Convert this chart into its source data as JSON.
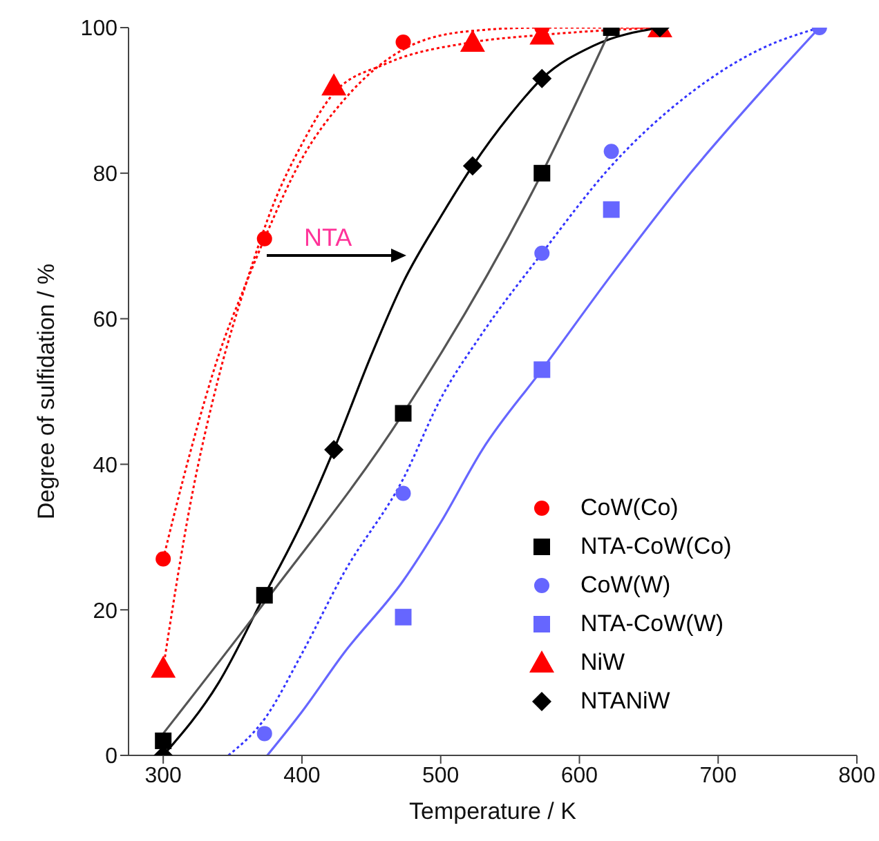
{
  "chart_data": {
    "type": "scatter",
    "xlabel": "Temperature / K",
    "ylabel": "Degree of sulfidation / %",
    "xlim": [
      275,
      800
    ],
    "xticks": [
      300,
      400,
      500,
      600,
      700,
      800
    ],
    "ylim": [
      0,
      100
    ],
    "yticks": [
      0,
      20,
      40,
      60,
      80,
      100
    ],
    "legend": "bottom right",
    "grid": false,
    "annotations": [
      "NTA"
    ],
    "series": [
      {
        "name": "CoW(Co)",
        "marker": "circle",
        "color": "#ff0000",
        "x": [
          300,
          373,
          473,
          573
        ],
        "values": [
          27,
          71,
          98,
          100
        ]
      },
      {
        "name": "NTA-CoW(Co)",
        "marker": "square",
        "color": "#000000",
        "x": [
          300,
          373,
          473,
          573,
          623
        ],
        "values": [
          2,
          22,
          47,
          80,
          100
        ]
      },
      {
        "name": "CoW(W)",
        "marker": "circle",
        "color": "#6666ff",
        "x": [
          373,
          473,
          573,
          623,
          773
        ],
        "values": [
          3,
          36,
          69,
          83,
          100
        ]
      },
      {
        "name": "NTA-CoW(W)",
        "marker": "square",
        "color": "#6666ff",
        "x": [
          473,
          573,
          623
        ],
        "values": [
          19,
          53,
          75
        ]
      },
      {
        "name": "NiW",
        "marker": "triangle",
        "color": "#ff0000",
        "x": [
          300,
          423,
          523,
          573,
          658
        ],
        "values": [
          12,
          92,
          98,
          99,
          100
        ]
      },
      {
        "name": "NTANiW",
        "marker": "diamond",
        "color": "#000000",
        "x": [
          300,
          423,
          523,
          573,
          658
        ],
        "values": [
          0,
          42,
          81,
          93,
          100
        ]
      },
      {
        "type": "line",
        "marker": "none",
        "line_style": "dotted",
        "color": "#ff0000",
        "x": [
          300,
          320,
          340,
          360,
          373,
          400,
          430,
          473,
          520,
          573,
          658
        ],
        "values": [
          27,
          42,
          55,
          65,
          71,
          82,
          90,
          97,
          99.5,
          100,
          100
        ]
      },
      {
        "type": "line",
        "marker": "none",
        "line_style": "dotted",
        "color": "#ff0000",
        "x": [
          300,
          320,
          340,
          360,
          380,
          400,
          423,
          460,
          523,
          573,
          658
        ],
        "values": [
          12,
          35,
          52,
          65,
          76,
          84,
          91,
          95,
          98,
          99,
          100
        ]
      },
      {
        "type": "line",
        "marker": "none",
        "line_style": "solid",
        "color": "#000000",
        "x": [
          300,
          340,
          373,
          400,
          423,
          450,
          473,
          500,
          523,
          550,
          573,
          610,
          658
        ],
        "values": [
          0,
          10,
          22,
          32,
          42,
          55,
          65,
          74,
          81,
          88,
          93,
          97.5,
          100
        ]
      },
      {
        "type": "line",
        "marker": "none",
        "line_style": "solid",
        "color": "#555555",
        "x": [
          300,
          373,
          473,
          573,
          623
        ],
        "values": [
          3,
          21,
          47,
          80,
          100
        ]
      },
      {
        "type": "line",
        "marker": "none",
        "line_style": "dotted",
        "color": "#3333ff",
        "x": [
          347,
          373,
          400,
          430,
          473,
          500,
          530,
          573,
          623,
          680,
          730,
          773
        ],
        "values": [
          0,
          5,
          14,
          25,
          38,
          49,
          58,
          69,
          81,
          91,
          97,
          100
        ]
      },
      {
        "type": "line",
        "marker": "none",
        "line_style": "solid",
        "color": "#6666ff",
        "x": [
          375,
          400,
          430,
          473,
          500,
          530,
          573,
          623,
          680,
          730,
          773
        ],
        "values": [
          0,
          6,
          14,
          24,
          32,
          42,
          53,
          66,
          80,
          91,
          100
        ]
      }
    ]
  }
}
